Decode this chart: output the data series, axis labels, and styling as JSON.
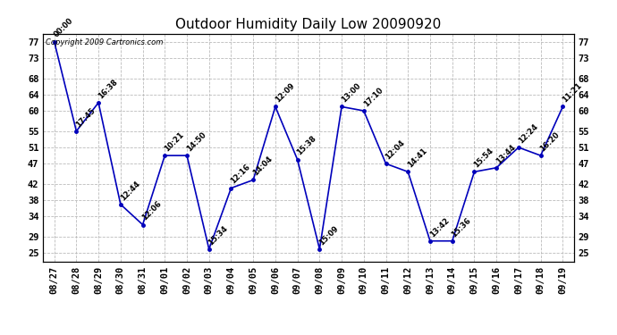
{
  "title": "Outdoor Humidity Daily Low 20090920",
  "copyright_text": "Copyright 2009 Cartronics.com",
  "x_labels": [
    "08/27",
    "08/28",
    "08/29",
    "08/30",
    "08/31",
    "09/01",
    "09/02",
    "09/03",
    "09/04",
    "09/05",
    "09/06",
    "09/07",
    "09/08",
    "09/09",
    "09/10",
    "09/11",
    "09/12",
    "09/13",
    "09/14",
    "09/15",
    "09/16",
    "09/17",
    "09/18",
    "09/19"
  ],
  "y_values": [
    77,
    55,
    62,
    37,
    32,
    49,
    49,
    26,
    41,
    43,
    61,
    48,
    26,
    61,
    60,
    47,
    45,
    28,
    28,
    45,
    46,
    51,
    49,
    61
  ],
  "point_labels": [
    "00:00",
    "17:45",
    "16:38",
    "12:44",
    "12:06",
    "10:21",
    "14:50",
    "15:34",
    "12:16",
    "14:04",
    "12:09",
    "15:38",
    "15:09",
    "13:00",
    "17:10",
    "12:04",
    "14:41",
    "13:42",
    "15:36",
    "15:54",
    "13:44",
    "12:24",
    "16:20",
    "11:21"
  ],
  "ylim_min": 23,
  "ylim_max": 79,
  "yticks": [
    25,
    29,
    34,
    38,
    42,
    47,
    51,
    55,
    60,
    64,
    68,
    73,
    77
  ],
  "line_color": "#0000bb",
  "marker_color": "#0000bb",
  "bg_color": "#ffffff",
  "grid_color": "#bbbbbb",
  "title_fontsize": 11,
  "label_fontsize": 6,
  "tick_fontsize": 7.5,
  "copyright_fontsize": 6
}
